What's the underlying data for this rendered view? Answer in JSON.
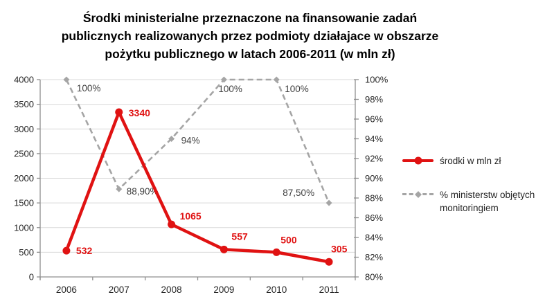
{
  "title": {
    "line1": "Środki ministerialne przeznaczone na finansowanie zadań",
    "line2": "publicznych realizowanych przez podmioty działajace w obszarze",
    "line3": "pożytku publicznego w latach 2006-2011 (w mln zł)"
  },
  "colors": {
    "red": "#e01212",
    "gray": "#a5a5a5",
    "grid": "#d9d9d9",
    "axis": "#8e8e8e",
    "axis_text": "#262626",
    "label_text": "#3f3f3f"
  },
  "chart_data": {
    "type": "line",
    "title": "Środki ministerialne przeznaczone na finansowanie zadań publicznych realizowanych przez podmioty działajace w obszarze pożytku publicznego w latach 2006-2011 (w mln zł)",
    "categories": [
      "2006",
      "2007",
      "2008",
      "2009",
      "2010",
      "2011"
    ],
    "series": [
      {
        "name": "środki w mln zł",
        "axis": "left",
        "line_style": "solid",
        "marker": "circle",
        "color": "#e01212",
        "values": [
          532,
          3340,
          1065,
          557,
          500,
          305
        ],
        "labels": [
          "532",
          "3340",
          "1065",
          "557",
          "500",
          "305"
        ]
      },
      {
        "name": "% ministerstw objętych monitoringiem",
        "axis": "right",
        "line_style": "dashed",
        "marker": "diamond",
        "color": "#a5a5a5",
        "values": [
          100,
          88.9,
          94,
          100,
          100,
          87.5
        ],
        "labels": [
          "100%",
          "88,90%",
          "94%",
          "100%",
          "100%",
          "87,50%"
        ]
      }
    ],
    "left_axis": {
      "min": 0,
      "max": 4000,
      "step": 500,
      "tick_labels": [
        "0",
        "500",
        "1000",
        "1500",
        "2000",
        "2500",
        "3000",
        "3500",
        "4000"
      ]
    },
    "right_axis": {
      "min": 80,
      "max": 100,
      "step": 2,
      "tick_labels": [
        "80%",
        "82%",
        "84%",
        "86%",
        "88%",
        "90%",
        "92%",
        "94%",
        "96%",
        "98%",
        "100%"
      ]
    },
    "grid": "horizontal",
    "legend_position": "right"
  }
}
